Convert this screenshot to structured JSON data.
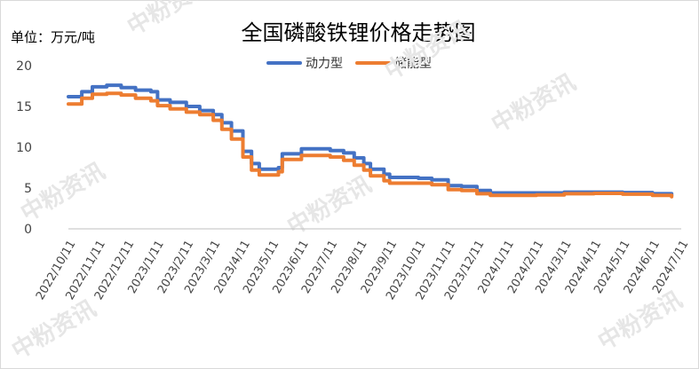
{
  "chart_data": {
    "type": "line",
    "title": "全国磷酸铁锂价格走势图",
    "unit_label": "单位：万元/吨",
    "ylim": [
      0,
      20
    ],
    "yticks": [
      0,
      5,
      10,
      15,
      20
    ],
    "x_tick_labels": [
      "2022/10/11",
      "2022/11/11",
      "2022/12/11",
      "2023/1/11",
      "2023/2/11",
      "2023/3/11",
      "2023/4/11",
      "2023/5/11",
      "2023/6/11",
      "2023/7/11",
      "2023/8/11",
      "2023/9/11",
      "2023/10/11",
      "2023/11/11",
      "2023/12/11",
      "2024/1/11",
      "2024/2/11",
      "2024/3/11",
      "2024/4/11",
      "2024/5/11",
      "2024/6/11",
      "2024/7/11"
    ],
    "grid": false,
    "legend_position": "top",
    "series": [
      {
        "name": "动力型",
        "color": "#4472c4",
        "points": [
          [
            "2022/10/11",
            16.2
          ],
          [
            "2022/10/25",
            16.8
          ],
          [
            "2022/11/5",
            17.4
          ],
          [
            "2022/11/20",
            17.6
          ],
          [
            "2022/12/5",
            17.3
          ],
          [
            "2022/12/20",
            17.0
          ],
          [
            "2023/1/5",
            16.8
          ],
          [
            "2023/1/12",
            15.8
          ],
          [
            "2023/1/25",
            15.5
          ],
          [
            "2023/2/11",
            15.0
          ],
          [
            "2023/2/25",
            14.5
          ],
          [
            "2023/3/11",
            14.0
          ],
          [
            "2023/3/20",
            13.0
          ],
          [
            "2023/3/30",
            12.0
          ],
          [
            "2023/4/11",
            9.5
          ],
          [
            "2023/4/20",
            8.0
          ],
          [
            "2023/4/28",
            7.3
          ],
          [
            "2023/5/10",
            7.3
          ],
          [
            "2023/5/18",
            7.5
          ],
          [
            "2023/5/22",
            9.2
          ],
          [
            "2023/6/11",
            9.8
          ],
          [
            "2023/6/25",
            9.8
          ],
          [
            "2023/7/11",
            9.6
          ],
          [
            "2023/7/25",
            9.3
          ],
          [
            "2023/8/5",
            8.7
          ],
          [
            "2023/8/15",
            8.0
          ],
          [
            "2023/8/22",
            7.3
          ],
          [
            "2023/9/5",
            6.7
          ],
          [
            "2023/9/11",
            6.3
          ],
          [
            "2023/10/11",
            6.2
          ],
          [
            "2023/10/25",
            6.0
          ],
          [
            "2023/11/11",
            5.3
          ],
          [
            "2023/11/25",
            5.2
          ],
          [
            "2023/12/11",
            4.7
          ],
          [
            "2023/12/25",
            4.4
          ],
          [
            "2024/1/11",
            4.4
          ],
          [
            "2024/2/11",
            4.4
          ],
          [
            "2024/3/11",
            4.5
          ],
          [
            "2024/4/11",
            4.5
          ],
          [
            "2024/5/11",
            4.45
          ],
          [
            "2024/6/11",
            4.3
          ],
          [
            "2024/7/1",
            4.1
          ]
        ]
      },
      {
        "name": "储能型",
        "color": "#ed7d31",
        "points": [
          [
            "2022/10/11",
            15.3
          ],
          [
            "2022/10/25",
            16.0
          ],
          [
            "2022/11/5",
            16.5
          ],
          [
            "2022/11/20",
            16.6
          ],
          [
            "2022/12/5",
            16.4
          ],
          [
            "2022/12/20",
            16.0
          ],
          [
            "2023/1/5",
            15.7
          ],
          [
            "2023/1/12",
            15.1
          ],
          [
            "2023/1/25",
            14.7
          ],
          [
            "2023/2/11",
            14.3
          ],
          [
            "2023/2/25",
            14.0
          ],
          [
            "2023/3/11",
            13.3
          ],
          [
            "2023/3/20",
            12.2
          ],
          [
            "2023/3/30",
            11.0
          ],
          [
            "2023/4/11",
            8.8
          ],
          [
            "2023/4/20",
            7.2
          ],
          [
            "2023/4/28",
            6.6
          ],
          [
            "2023/5/10",
            6.6
          ],
          [
            "2023/5/18",
            7.0
          ],
          [
            "2023/5/22",
            8.5
          ],
          [
            "2023/6/11",
            9.0
          ],
          [
            "2023/6/25",
            9.0
          ],
          [
            "2023/7/11",
            8.8
          ],
          [
            "2023/7/25",
            8.4
          ],
          [
            "2023/8/5",
            7.8
          ],
          [
            "2023/8/15",
            7.2
          ],
          [
            "2023/8/22",
            6.5
          ],
          [
            "2023/9/5",
            5.9
          ],
          [
            "2023/9/11",
            5.6
          ],
          [
            "2023/10/11",
            5.6
          ],
          [
            "2023/10/25",
            5.4
          ],
          [
            "2023/11/11",
            4.8
          ],
          [
            "2023/11/25",
            4.7
          ],
          [
            "2023/12/11",
            4.3
          ],
          [
            "2023/12/25",
            4.1
          ],
          [
            "2024/1/11",
            4.1
          ],
          [
            "2024/2/11",
            4.15
          ],
          [
            "2024/3/11",
            4.3
          ],
          [
            "2024/4/11",
            4.35
          ],
          [
            "2024/5/11",
            4.25
          ],
          [
            "2024/6/11",
            4.1
          ],
          [
            "2024/7/1",
            3.95
          ]
        ]
      }
    ]
  },
  "watermark": "中粉资讯"
}
